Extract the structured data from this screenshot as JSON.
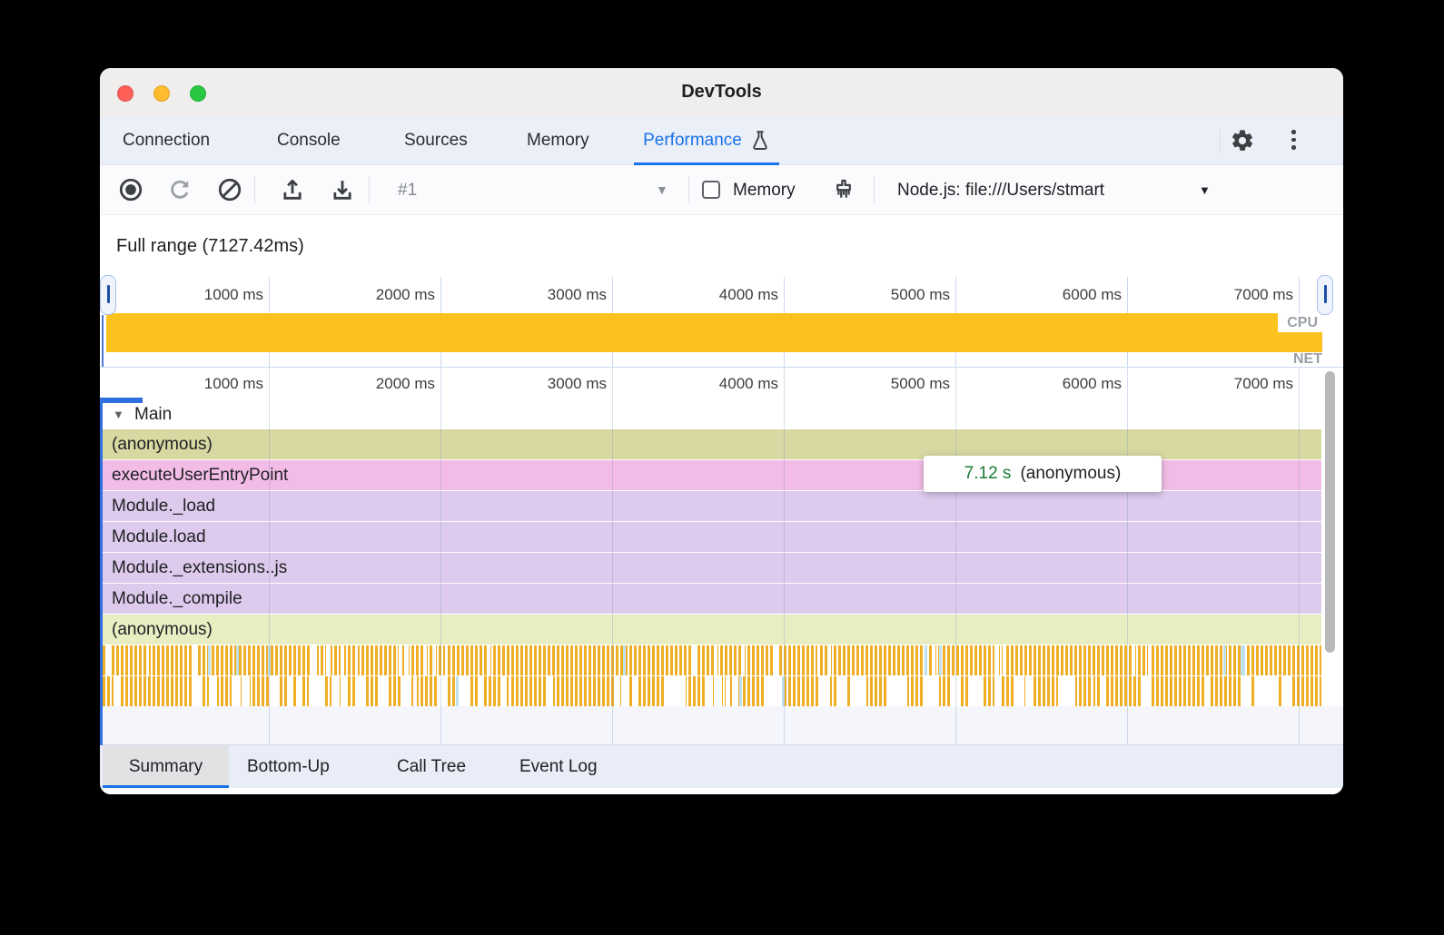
{
  "titlebar": {
    "title": "DevTools"
  },
  "tabs": {
    "items": [
      "Connection",
      "Console",
      "Sources",
      "Memory",
      "Performance"
    ],
    "active_index": 4
  },
  "toolbar": {
    "history_value": "#1",
    "memory_label": "Memory",
    "target_value": "Node.js: file:///Users/stmart"
  },
  "range": {
    "full_range_label": "Full range (7127.42ms)"
  },
  "overview": {
    "tick_labels": [
      "1000 ms",
      "2000 ms",
      "3000 ms",
      "4000 ms",
      "5000 ms",
      "6000 ms",
      "7000 ms"
    ],
    "cpu_label": "CPU",
    "net_label": "NET"
  },
  "flame": {
    "tick_labels": [
      "1000 ms",
      "2000 ms",
      "3000 ms",
      "4000 ms",
      "5000 ms",
      "6000 ms",
      "7000 ms"
    ],
    "track_label": "Main",
    "rows": [
      {
        "label": "(anonymous)",
        "color": "#d7d8a2"
      },
      {
        "label": "executeUserEntryPoint",
        "color": "#f2bce7"
      },
      {
        "label": "Module._load",
        "color": "#decaed"
      },
      {
        "label": "Module.load",
        "color": "#decaed"
      },
      {
        "label": "Module._extensions..js",
        "color": "#decaed"
      },
      {
        "label": "Module._compile",
        "color": "#decaed"
      },
      {
        "label": "(anonymous)",
        "color": "#e8eec2"
      }
    ]
  },
  "tooltip": {
    "duration": "7.12 s",
    "label": "(anonymous)"
  },
  "bottom_tabs": {
    "items": [
      "Summary",
      "Bottom-Up",
      "Call Tree",
      "Event Log"
    ],
    "active_index": 0
  },
  "colors": {
    "accent": "#1a73e8",
    "cpu_fill": "#fbc21d",
    "duration_green": "#1a7d36",
    "barcode_orange": "#efae24"
  }
}
